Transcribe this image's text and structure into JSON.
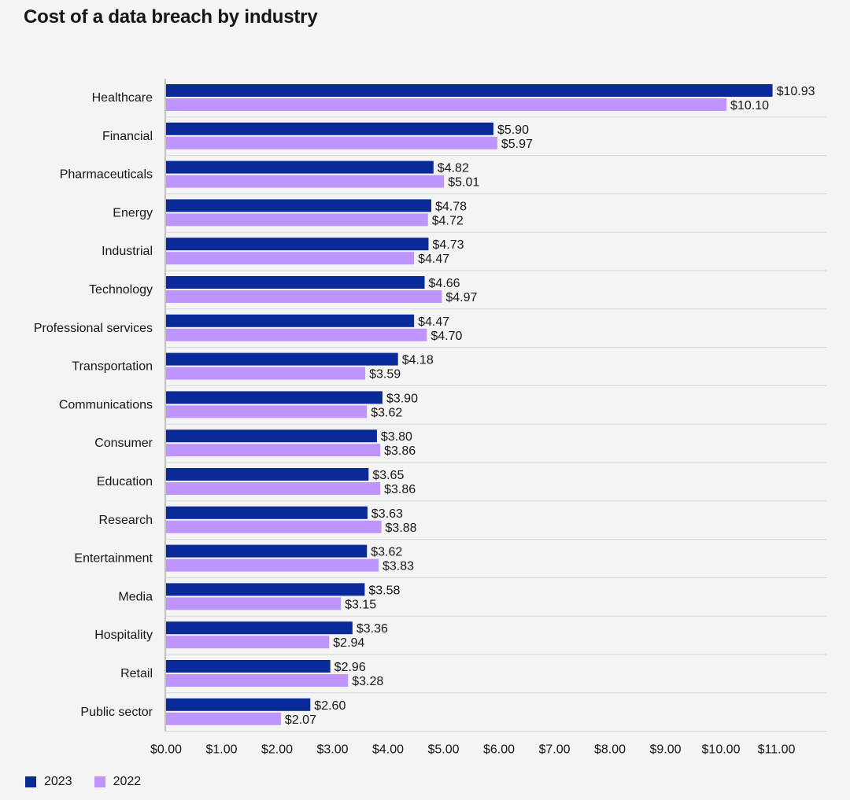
{
  "title": "Cost of a data breach by industry",
  "colors": {
    "s2023": "#0b2a99",
    "s2022": "#be95ff",
    "grid": "#d4d4d4",
    "axis": "#8d8d8d"
  },
  "chart_data": {
    "type": "bar",
    "orientation": "horizontal",
    "title": "Cost of a data breach by industry",
    "categories": [
      "Healthcare",
      "Financial",
      "Pharmaceuticals",
      "Energy",
      "Industrial",
      "Technology",
      "Professional services",
      "Transportation",
      "Communications",
      "Consumer",
      "Education",
      "Research",
      "Entertainment",
      "Media",
      "Hospitality",
      "Retail",
      "Public sector"
    ],
    "series": [
      {
        "name": "2023",
        "values": [
          10.93,
          5.9,
          4.82,
          4.78,
          4.73,
          4.66,
          4.47,
          4.18,
          3.9,
          3.8,
          3.65,
          3.63,
          3.62,
          3.58,
          3.36,
          2.96,
          2.6
        ],
        "labels": [
          "$10.93",
          "$5.90",
          "$4.82",
          "$4.78",
          "$4.73",
          "$4.66",
          "$4.47",
          "$4.18",
          "$3.90",
          "$3.80",
          "$3.65",
          "$3.63",
          "$3.62",
          "$3.58",
          "$3.36",
          "$2.96",
          "$2.60"
        ]
      },
      {
        "name": "2022",
        "values": [
          10.1,
          5.97,
          5.01,
          4.72,
          4.47,
          4.97,
          4.7,
          3.59,
          3.62,
          3.86,
          3.86,
          3.88,
          3.83,
          3.15,
          2.94,
          3.28,
          2.07
        ],
        "labels": [
          "$10.10",
          "$5.97",
          "$5.01",
          "$4.72",
          "$4.47",
          "$4.97",
          "$4.70",
          "$3.59",
          "$3.62",
          "$3.86",
          "$3.86",
          "$3.88",
          "$3.83",
          "$3.15",
          "$2.94",
          "$3.28",
          "$2.07"
        ]
      }
    ],
    "xlim": [
      0,
      11
    ],
    "xticks": [
      0,
      1,
      2,
      3,
      4,
      5,
      6,
      7,
      8,
      9,
      10,
      11
    ],
    "xtick_labels": [
      "$0.00",
      "$1.00",
      "$2.00",
      "$3.00",
      "$4.00",
      "$5.00",
      "$6.00",
      "$7.00",
      "$8.00",
      "$9.00",
      "$10.00",
      "$11.00"
    ],
    "legend": {
      "placement": "bottom-left",
      "entries": [
        "2023",
        "2022"
      ]
    },
    "grid": true
  }
}
